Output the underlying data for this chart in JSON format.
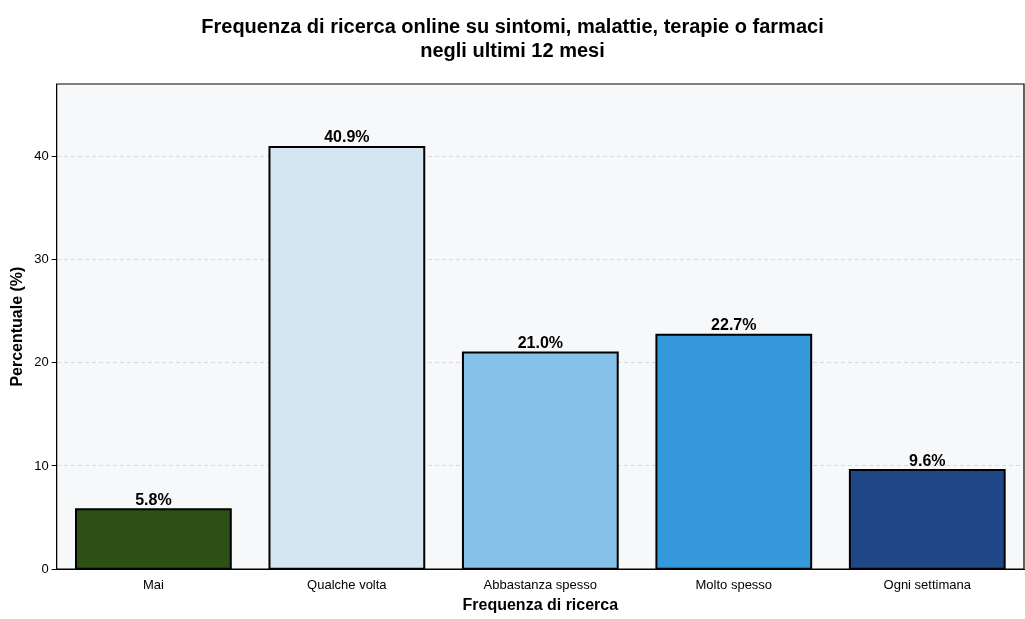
{
  "chart_data": {
    "type": "bar",
    "title": "Frequenza di ricerca online su sintomi, malattie, terapie o farmaci negli ultimi 12 mesi",
    "xlabel": "Frequenza di ricerca",
    "ylabel": "Percentuale (%)",
    "categories": [
      "Mai",
      "Qualche volta",
      "Abbastanza spesso",
      "Molto spesso",
      "Ogni settimana"
    ],
    "values": [
      5.8,
      40.9,
      21.0,
      22.7,
      9.6
    ],
    "value_labels": [
      "5.8%",
      "40.9%",
      "21.0%",
      "22.7%",
      "9.6%"
    ],
    "colors": [
      "#2d5016",
      "#d4e6f2",
      "#85c1e9",
      "#3498db",
      "#1f4788"
    ],
    "ylim": [
      0,
      47
    ],
    "yticks": [
      0,
      10,
      20,
      30,
      40
    ],
    "grid": "y",
    "legend": false
  }
}
